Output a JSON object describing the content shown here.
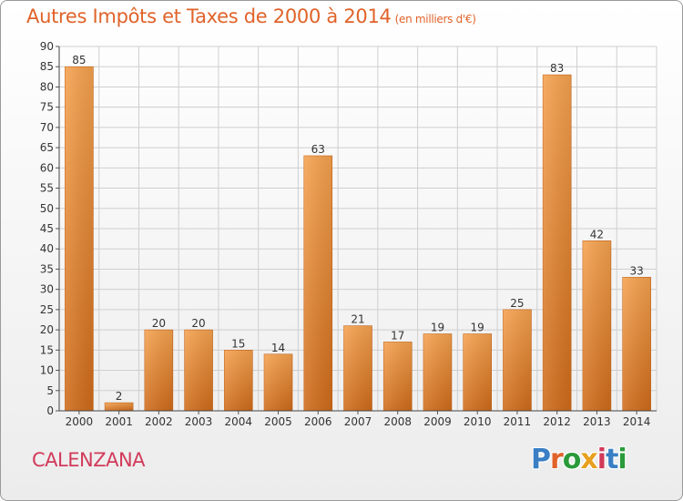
{
  "chart_data": {
    "type": "bar",
    "title": "Autres Impôts et Taxes de 2000 à 2014",
    "subtitle": "(en milliers d'€)",
    "categories": [
      "2000",
      "2001",
      "2002",
      "2003",
      "2004",
      "2005",
      "2006",
      "2007",
      "2008",
      "2009",
      "2010",
      "2011",
      "2012",
      "2013",
      "2014"
    ],
    "values": [
      85,
      2,
      20,
      20,
      15,
      14,
      63,
      21,
      17,
      19,
      19,
      25,
      83,
      42,
      33
    ],
    "ylim": [
      0,
      90
    ],
    "ytick_step": 5,
    "grid": true,
    "bar_color_top": "#f5a24f",
    "bar_color_bottom": "#cf6b1a"
  },
  "footer": {
    "commune": "CALENZANA",
    "logo_text": "Proxiti",
    "logo_colors": [
      "#3a7fc4",
      "#e0632a",
      "#2a9a3a",
      "#e8a020",
      "#d23a5a",
      "#3a7fc4",
      "#2a9a3a"
    ]
  }
}
